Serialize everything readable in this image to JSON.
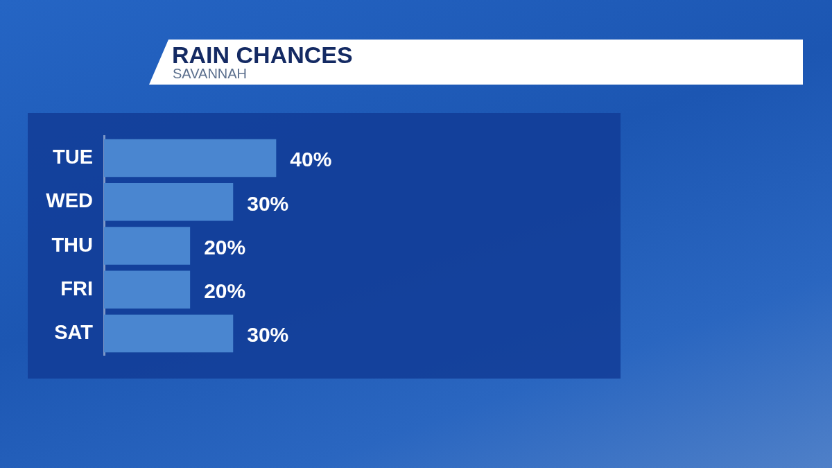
{
  "chart_data": {
    "type": "bar",
    "orientation": "horizontal",
    "title": "RAIN CHANCES",
    "subtitle": "SAVANNAH",
    "categories": [
      "TUE",
      "WED",
      "THU",
      "FRI",
      "SAT"
    ],
    "values": [
      40,
      30,
      20,
      20,
      30
    ],
    "value_labels": [
      "40%",
      "30%",
      "20%",
      "20%",
      "30%"
    ],
    "color": "#4a86d0",
    "xlim": [
      0,
      120
    ],
    "tick_labels": "y"
  }
}
